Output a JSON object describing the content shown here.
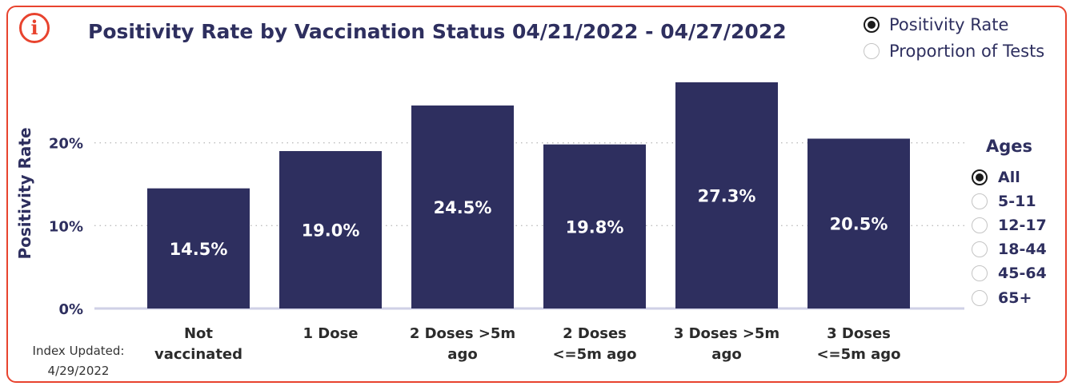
{
  "colors": {
    "accent": "#e8432e",
    "bar": "#2e2f5f",
    "text": "#2e2f5f",
    "grid": "#bdbdbd"
  },
  "header": {
    "info_icon": "info-icon",
    "info_glyph": "i"
  },
  "chart_data": {
    "type": "bar",
    "title": "Positivity Rate by Vaccination Status 04/21/2022 - 04/27/2022",
    "ylabel": "Positivity Rate",
    "xlabel": "",
    "ylim": [
      0,
      0.3
    ],
    "yticks": [
      {
        "value": 0,
        "label": "0%"
      },
      {
        "value": 0.1,
        "label": "10%"
      },
      {
        "value": 0.2,
        "label": "20%"
      }
    ],
    "categories": [
      [
        "Not",
        "vaccinated"
      ],
      [
        "1 Dose"
      ],
      [
        "2 Doses >5m",
        "ago"
      ],
      [
        "2 Doses",
        "<=5m ago"
      ],
      [
        "3 Doses >5m",
        "ago"
      ],
      [
        "3 Doses",
        "<=5m ago"
      ]
    ],
    "values": [
      0.145,
      0.19,
      0.245,
      0.198,
      0.273,
      0.205
    ],
    "data_labels": [
      "14.5%",
      "19.0%",
      "24.5%",
      "19.8%",
      "27.3%",
      "20.5%"
    ],
    "grid": "horizontal dotted",
    "legend": "none"
  },
  "metric_toggle": {
    "options": [
      {
        "label": "Positivity Rate",
        "selected": true
      },
      {
        "label": "Proportion of Tests",
        "selected": false
      }
    ]
  },
  "ages": {
    "title": "Ages",
    "options": [
      {
        "label": "All",
        "selected": true
      },
      {
        "label": "5-11",
        "selected": false
      },
      {
        "label": "12-17",
        "selected": false
      },
      {
        "label": "18-44",
        "selected": false
      },
      {
        "label": "45-64",
        "selected": false
      },
      {
        "label": "65+",
        "selected": false
      }
    ]
  },
  "footer": {
    "index_label": "Index Updated:",
    "index_date": "4/29/2022"
  }
}
